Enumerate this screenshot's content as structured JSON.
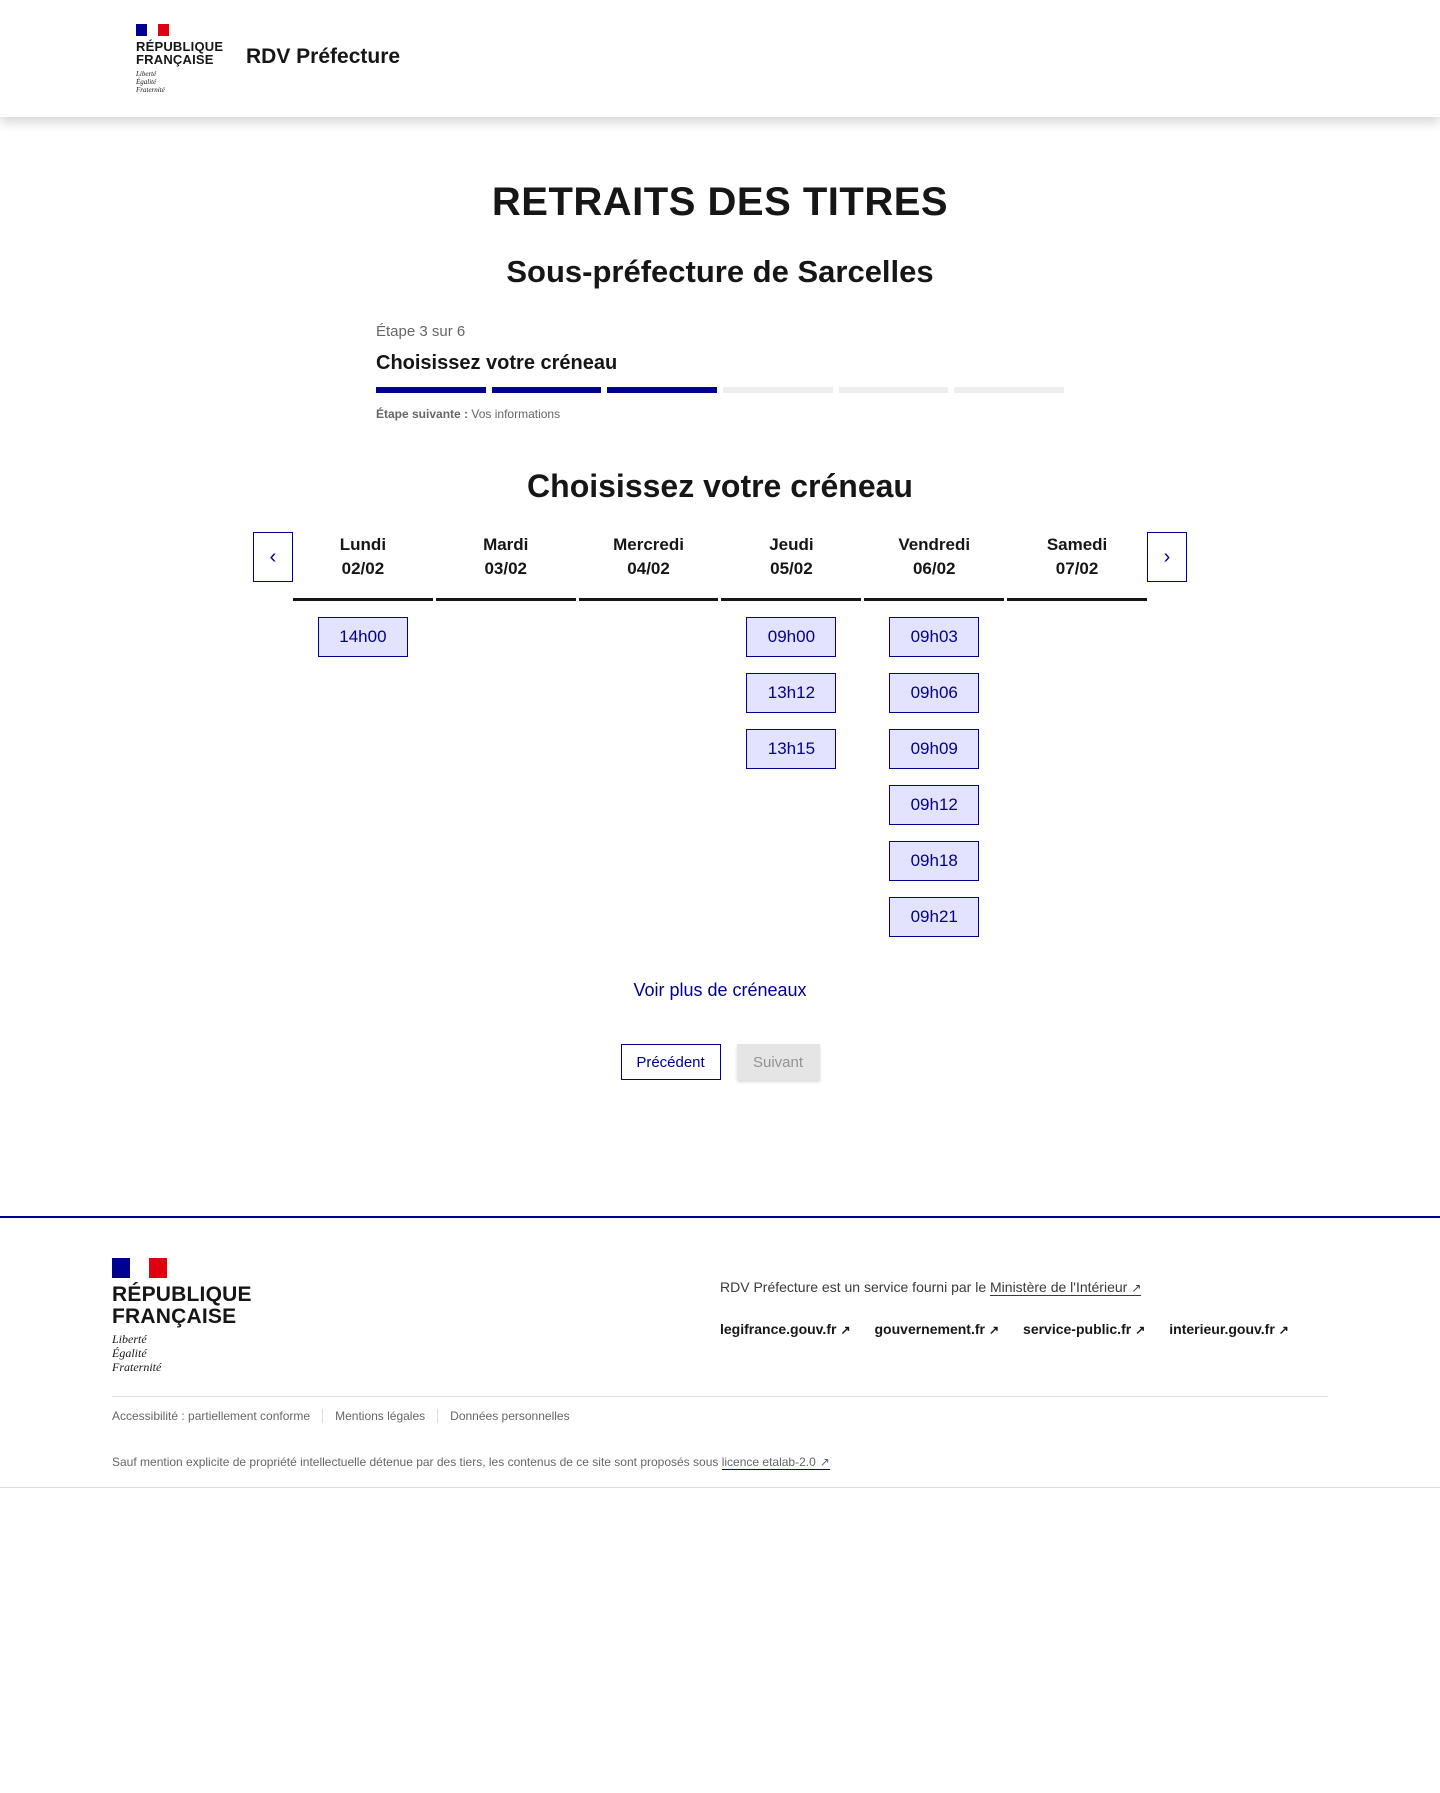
{
  "header": {
    "logo_line1": "RÉPUBLIQUE",
    "logo_line2": "FRANÇAISE",
    "motto": [
      "Liberté",
      "Égalité",
      "Fraternité"
    ],
    "service_name": "RDV Préfecture"
  },
  "page": {
    "title": "RETRAITS DES TITRES",
    "subtitle": "Sous-préfecture de Sarcelles"
  },
  "stepper": {
    "count": "Étape 3 sur 6",
    "title": "Choisissez votre créneau",
    "current": 3,
    "total": 6,
    "next_label": "Étape suivante :",
    "next_value": "Vos informations"
  },
  "calendar": {
    "heading": "Choisissez votre créneau",
    "prev_icon": "chevron-left-icon",
    "next_icon": "chevron-right-icon",
    "days": [
      {
        "name": "Lundi",
        "date": "02/02",
        "slots": [
          "14h00"
        ]
      },
      {
        "name": "Mardi",
        "date": "03/02",
        "slots": []
      },
      {
        "name": "Mercredi",
        "date": "04/02",
        "slots": []
      },
      {
        "name": "Jeudi",
        "date": "05/02",
        "slots": [
          "09h00",
          "13h12",
          "13h15"
        ]
      },
      {
        "name": "Vendredi",
        "date": "06/02",
        "slots": [
          "09h03",
          "09h06",
          "09h09",
          "09h12",
          "09h18",
          "09h21"
        ]
      },
      {
        "name": "Samedi",
        "date": "07/02",
        "slots": []
      }
    ],
    "more": "Voir plus de créneaux"
  },
  "actions": {
    "previous": "Précédent",
    "next": "Suivant"
  },
  "footer": {
    "logo_line1": "RÉPUBLIQUE",
    "logo_line2": "FRANÇAISE",
    "motto": [
      "Liberté",
      "Égalité",
      "Fraternité"
    ],
    "desc": "RDV Préfecture est un service fourni par le",
    "desc_link": "Ministère de l'Intérieur",
    "links": [
      "legifrance.gouv.fr",
      "gouvernement.fr",
      "service-public.fr",
      "interieur.gouv.fr"
    ],
    "bottom_links": [
      "Accessibilité : partiellement conforme",
      "Mentions légales",
      "Données personnelles"
    ],
    "license_text": "Sauf mention explicite de propriété intellectuelle détenue par des tiers, les contenus de ce site sont proposés sous",
    "license_link": "licence etalab-2.0"
  },
  "colors": {
    "primary": "#000091",
    "slot_bg": "#e3e3fd",
    "flag_blue": "#000091",
    "flag_red": "#e1000f"
  }
}
